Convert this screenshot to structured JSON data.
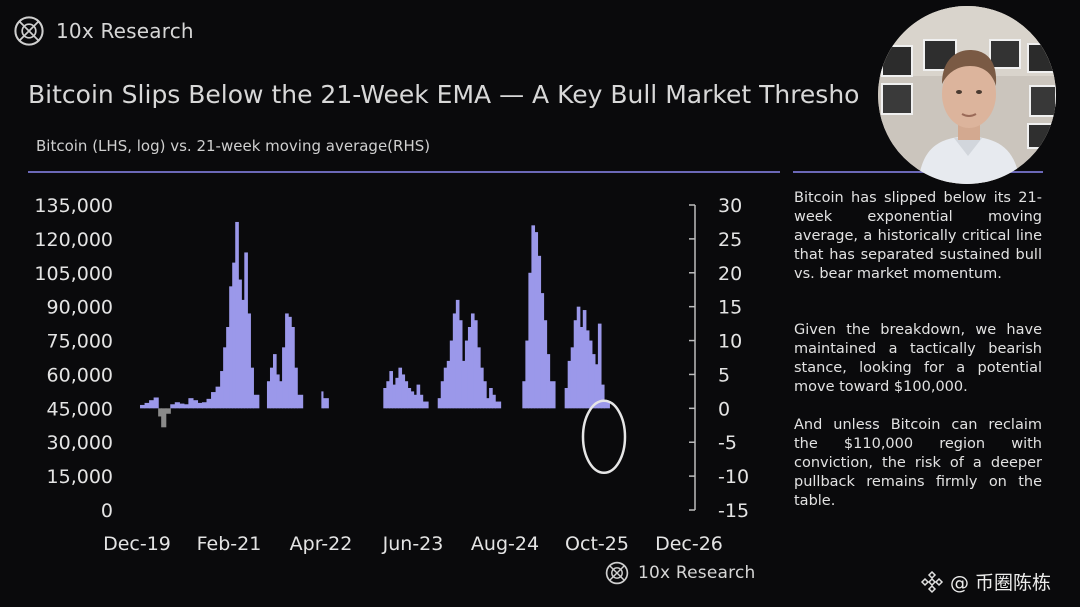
{
  "brand": {
    "name": "10x Research"
  },
  "title": "Bitcoin Slips Below the 21-Week EMA — A Key Bull Market Thresho",
  "subtitle": "Bitcoin (LHS, log) vs. 21-week moving average(RHS)",
  "side_text": {
    "p1": "Bitcoin has slipped below its 21-week exponential moving average, a historically critical line that has separated sustained bull vs. bear market momentum.",
    "p2": "Given the breakdown, we have maintained a tactically bearish stance, looking for a potential move toward $100,000.",
    "p3": "And unless Bitcoin can reclaim the $110,000 region with conviction, the risk of a deeper pullback remains firmly on the table."
  },
  "footer": {
    "brand": "10x Research"
  },
  "watermark": {
    "handle": "@ 币圈陈栋"
  },
  "colors": {
    "bar": "#9b98ea",
    "negative": "#8a8a8a",
    "rule": "#6b68b8",
    "annotation": "#e6e6e6"
  },
  "chart_data": {
    "type": "bar",
    "x_ticks": [
      "Dec-19",
      "Feb-21",
      "Apr-22",
      "Jun-23",
      "Aug-24",
      "Oct-25",
      "Dec-26"
    ],
    "y_left_ticks": [
      "135,000",
      "120,000",
      "105,000",
      "90,000",
      "75,000",
      "60,000",
      "45,000",
      "30,000",
      "15,000",
      "0"
    ],
    "y_left_range": [
      0,
      135000
    ],
    "y_right_ticks": [
      "30",
      "25",
      "20",
      "15",
      "10",
      "5",
      "0",
      "-5",
      "-10",
      "-15"
    ],
    "y_right_range": [
      -15,
      30
    ],
    "x_range": [
      "Dec-19",
      "Dec-26"
    ],
    "series": [
      {
        "axis": "right",
        "values": [
          [
            "2019-12-15",
            0.5
          ],
          [
            "2020-01-05",
            0.8
          ],
          [
            "2020-01-26",
            1.2
          ],
          [
            "2020-02-16",
            1.6
          ],
          [
            "2020-03-08",
            -1.2
          ],
          [
            "2020-03-22",
            -2.8
          ],
          [
            "2020-04-12",
            -0.8
          ],
          [
            "2020-05-03",
            0.6
          ],
          [
            "2020-05-24",
            0.9
          ],
          [
            "2020-06-14",
            0.7
          ],
          [
            "2020-07-05",
            0.6
          ],
          [
            "2020-07-26",
            1.5
          ],
          [
            "2020-08-16",
            1.2
          ],
          [
            "2020-09-06",
            0.8
          ],
          [
            "2020-09-27",
            0.9
          ],
          [
            "2020-10-18",
            1.4
          ],
          [
            "2020-11-08",
            2.4
          ],
          [
            "2020-11-29",
            3.2
          ],
          [
            "2020-12-20",
            5.5
          ],
          [
            "2021-01-03",
            9.0
          ],
          [
            "2021-01-17",
            12.0
          ],
          [
            "2021-01-31",
            18.0
          ],
          [
            "2021-02-14",
            21.5
          ],
          [
            "2021-02-28",
            27.5
          ],
          [
            "2021-03-14",
            19.0
          ],
          [
            "2021-03-28",
            16.0
          ],
          [
            "2021-04-11",
            23.0
          ],
          [
            "2021-04-25",
            14.0
          ],
          [
            "2021-05-09",
            6.0
          ],
          [
            "2021-05-23",
            2.0
          ],
          [
            "2021-07-25",
            4.0
          ],
          [
            "2021-08-08",
            6.0
          ],
          [
            "2021-08-22",
            8.0
          ],
          [
            "2021-09-05",
            5.0
          ],
          [
            "2021-09-19",
            4.0
          ],
          [
            "2021-10-03",
            9.0
          ],
          [
            "2021-10-17",
            14.0
          ],
          [
            "2021-10-31",
            13.5
          ],
          [
            "2021-11-14",
            12.0
          ],
          [
            "2021-11-28",
            6.0
          ],
          [
            "2021-12-12",
            2.0
          ],
          [
            "2022-04-03",
            2.5
          ],
          [
            "2022-04-10",
            1.5
          ],
          [
            "2023-01-15",
            3.0
          ],
          [
            "2023-01-29",
            4.0
          ],
          [
            "2023-02-12",
            5.5
          ],
          [
            "2023-02-26",
            3.5
          ],
          [
            "2023-03-12",
            4.5
          ],
          [
            "2023-03-26",
            6.0
          ],
          [
            "2023-04-09",
            5.0
          ],
          [
            "2023-04-23",
            4.0
          ],
          [
            "2023-05-07",
            3.0
          ],
          [
            "2023-05-21",
            2.5
          ],
          [
            "2023-06-04",
            2.0
          ],
          [
            "2023-06-18",
            3.5
          ],
          [
            "2023-07-02",
            2.0
          ],
          [
            "2023-07-16",
            1.0
          ],
          [
            "2023-09-24",
            1.5
          ],
          [
            "2023-10-08",
            4.0
          ],
          [
            "2023-10-22",
            6.0
          ],
          [
            "2023-11-05",
            7.0
          ],
          [
            "2023-11-19",
            10.0
          ],
          [
            "2023-12-03",
            14.0
          ],
          [
            "2023-12-17",
            16.0
          ],
          [
            "2023-12-31",
            13.0
          ],
          [
            "2024-01-14",
            7.0
          ],
          [
            "2024-01-28",
            10.0
          ],
          [
            "2024-02-11",
            12.0
          ],
          [
            "2024-02-25",
            14.0
          ],
          [
            "2024-03-10",
            13.0
          ],
          [
            "2024-03-24",
            9.0
          ],
          [
            "2024-04-07",
            6.0
          ],
          [
            "2024-04-21",
            4.0
          ],
          [
            "2024-05-05",
            1.5
          ],
          [
            "2024-05-19",
            3.0
          ],
          [
            "2024-06-02",
            2.0
          ],
          [
            "2024-06-16",
            1.0
          ],
          [
            "2024-10-20",
            4.0
          ],
          [
            "2024-11-03",
            10.0
          ],
          [
            "2024-11-17",
            20.0
          ],
          [
            "2024-12-01",
            27.0
          ],
          [
            "2024-12-15",
            26.0
          ],
          [
            "2024-12-29",
            22.5
          ],
          [
            "2025-01-12",
            17.0
          ],
          [
            "2025-01-26",
            13.0
          ],
          [
            "2025-02-09",
            8.0
          ],
          [
            "2025-02-23",
            4.0
          ],
          [
            "2025-05-04",
            3.0
          ],
          [
            "2025-05-18",
            7.0
          ],
          [
            "2025-06-01",
            9.0
          ],
          [
            "2025-06-15",
            13.0
          ],
          [
            "2025-06-29",
            15.0
          ],
          [
            "2025-07-13",
            12.0
          ],
          [
            "2025-07-27",
            14.5
          ],
          [
            "2025-08-10",
            11.5
          ],
          [
            "2025-08-24",
            10.0
          ],
          [
            "2025-09-07",
            8.0
          ],
          [
            "2025-09-21",
            6.5
          ],
          [
            "2025-10-05",
            12.5
          ],
          [
            "2025-10-19",
            3.5
          ],
          [
            "2025-11-02",
            1.0
          ]
        ]
      }
    ]
  }
}
